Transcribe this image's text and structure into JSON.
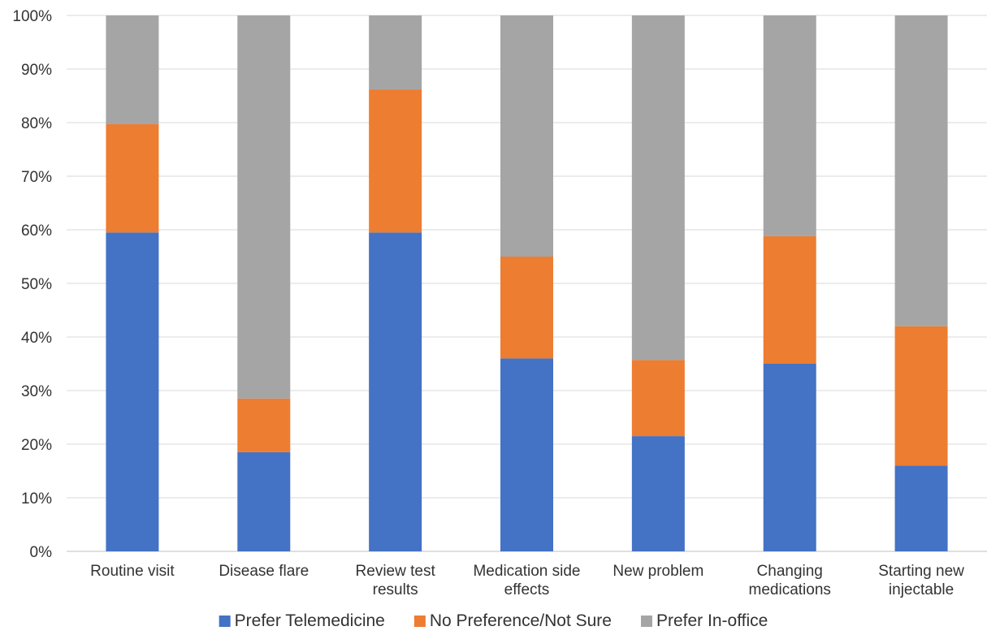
{
  "chart_data": {
    "type": "bar",
    "stacked": true,
    "percent_stacked": true,
    "categories": [
      [
        "Routine visit"
      ],
      [
        "Disease flare"
      ],
      [
        "Review test",
        "results"
      ],
      [
        "Medication side",
        "effects"
      ],
      [
        "New problem"
      ],
      [
        "Changing",
        "medications"
      ],
      [
        "Starting new",
        "injectable"
      ]
    ],
    "series": [
      {
        "name": "Prefer Telemedicine",
        "color": "#4472C4",
        "values": [
          59.5,
          18.5,
          59.5,
          36,
          21.5,
          35,
          16
        ]
      },
      {
        "name": "No Preference/Not Sure",
        "color": "#ED7D31",
        "values": [
          20.2,
          10,
          26.7,
          19,
          14.2,
          23.8,
          26
        ]
      },
      {
        "name": "Prefer In-office",
        "color": "#A5A5A5",
        "values": [
          20.3,
          71.5,
          13.8,
          45,
          64.3,
          41.2,
          58
        ]
      }
    ],
    "ylim": [
      0,
      100
    ],
    "yticks": [
      "0%",
      "10%",
      "20%",
      "30%",
      "40%",
      "50%",
      "60%",
      "70%",
      "80%",
      "90%",
      "100%"
    ],
    "grid": true,
    "legend_position": "bottom",
    "title": "",
    "xlabel": "",
    "ylabel": ""
  }
}
